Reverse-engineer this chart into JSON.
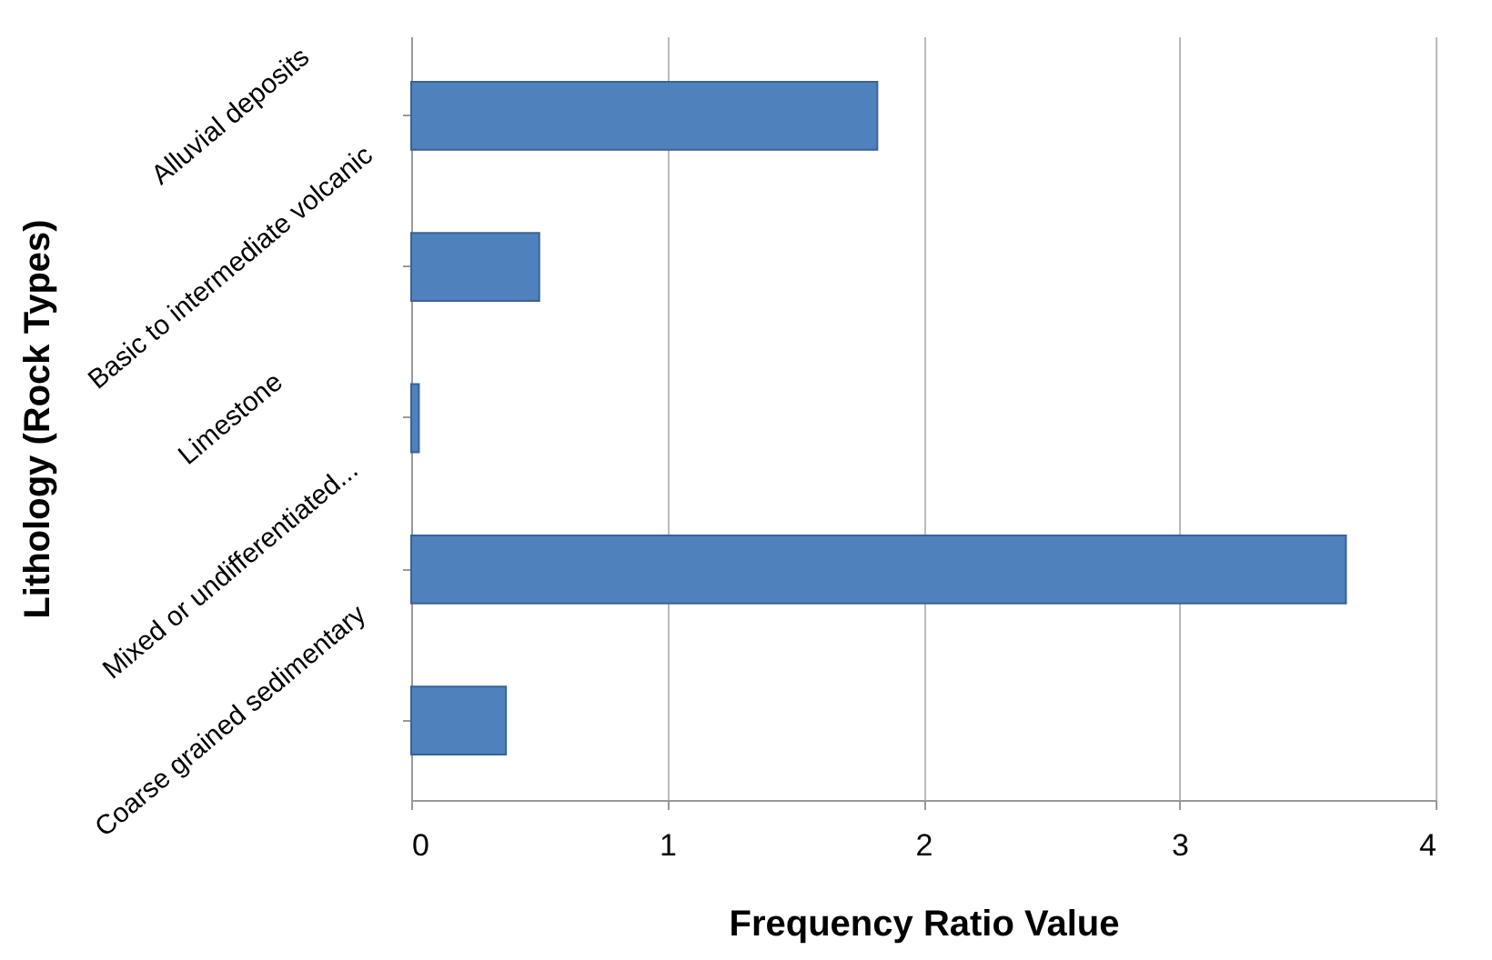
{
  "chart_data": {
    "type": "bar",
    "orientation": "horizontal",
    "xlabel": "Frequency Ratio Value",
    "ylabel": "Lithology (Rock Types)",
    "categories": [
      "Alluvial deposits",
      "Basic to intermediate volcanic",
      "Limestone",
      "Mixed or undifferentiated...",
      "Coarse grained sedimentary"
    ],
    "values": [
      1.82,
      0.5,
      0.03,
      3.65,
      0.37
    ],
    "color": "#4f81bd",
    "xlim": [
      0,
      4
    ],
    "xticks": [
      0,
      1,
      2,
      3,
      4
    ],
    "grid": "x"
  }
}
